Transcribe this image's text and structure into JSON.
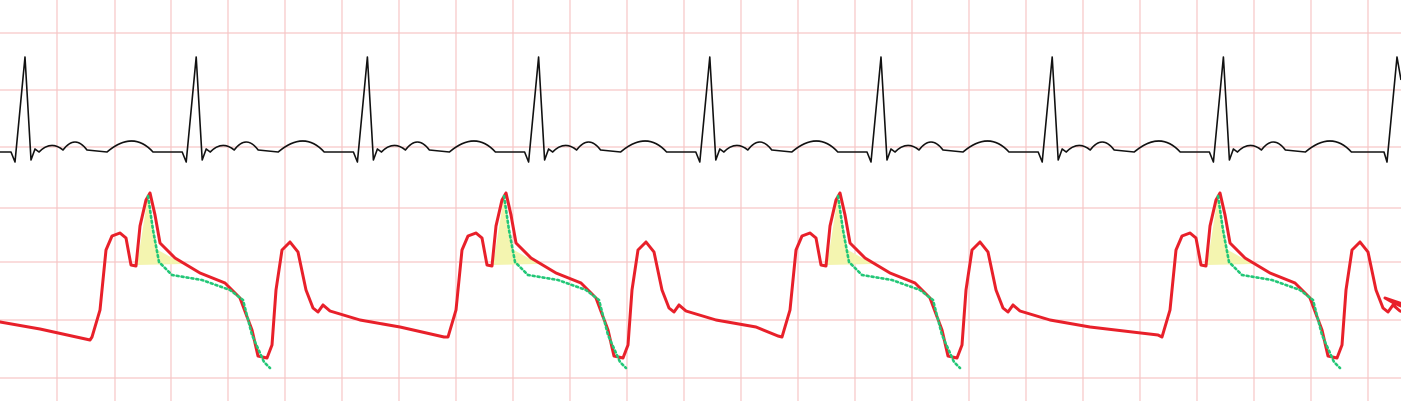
{
  "strip": {
    "background": "#ffffff",
    "grid_color": "#f6c6c6",
    "ecg_color": "#111111",
    "pressure_color": "#e8202a",
    "reference_color": "#22c777",
    "fill_color": "#f4f5b0"
  },
  "ecg": {
    "beat_count": 8
  },
  "pressure": {
    "augmented_beat_count": 4
  }
}
